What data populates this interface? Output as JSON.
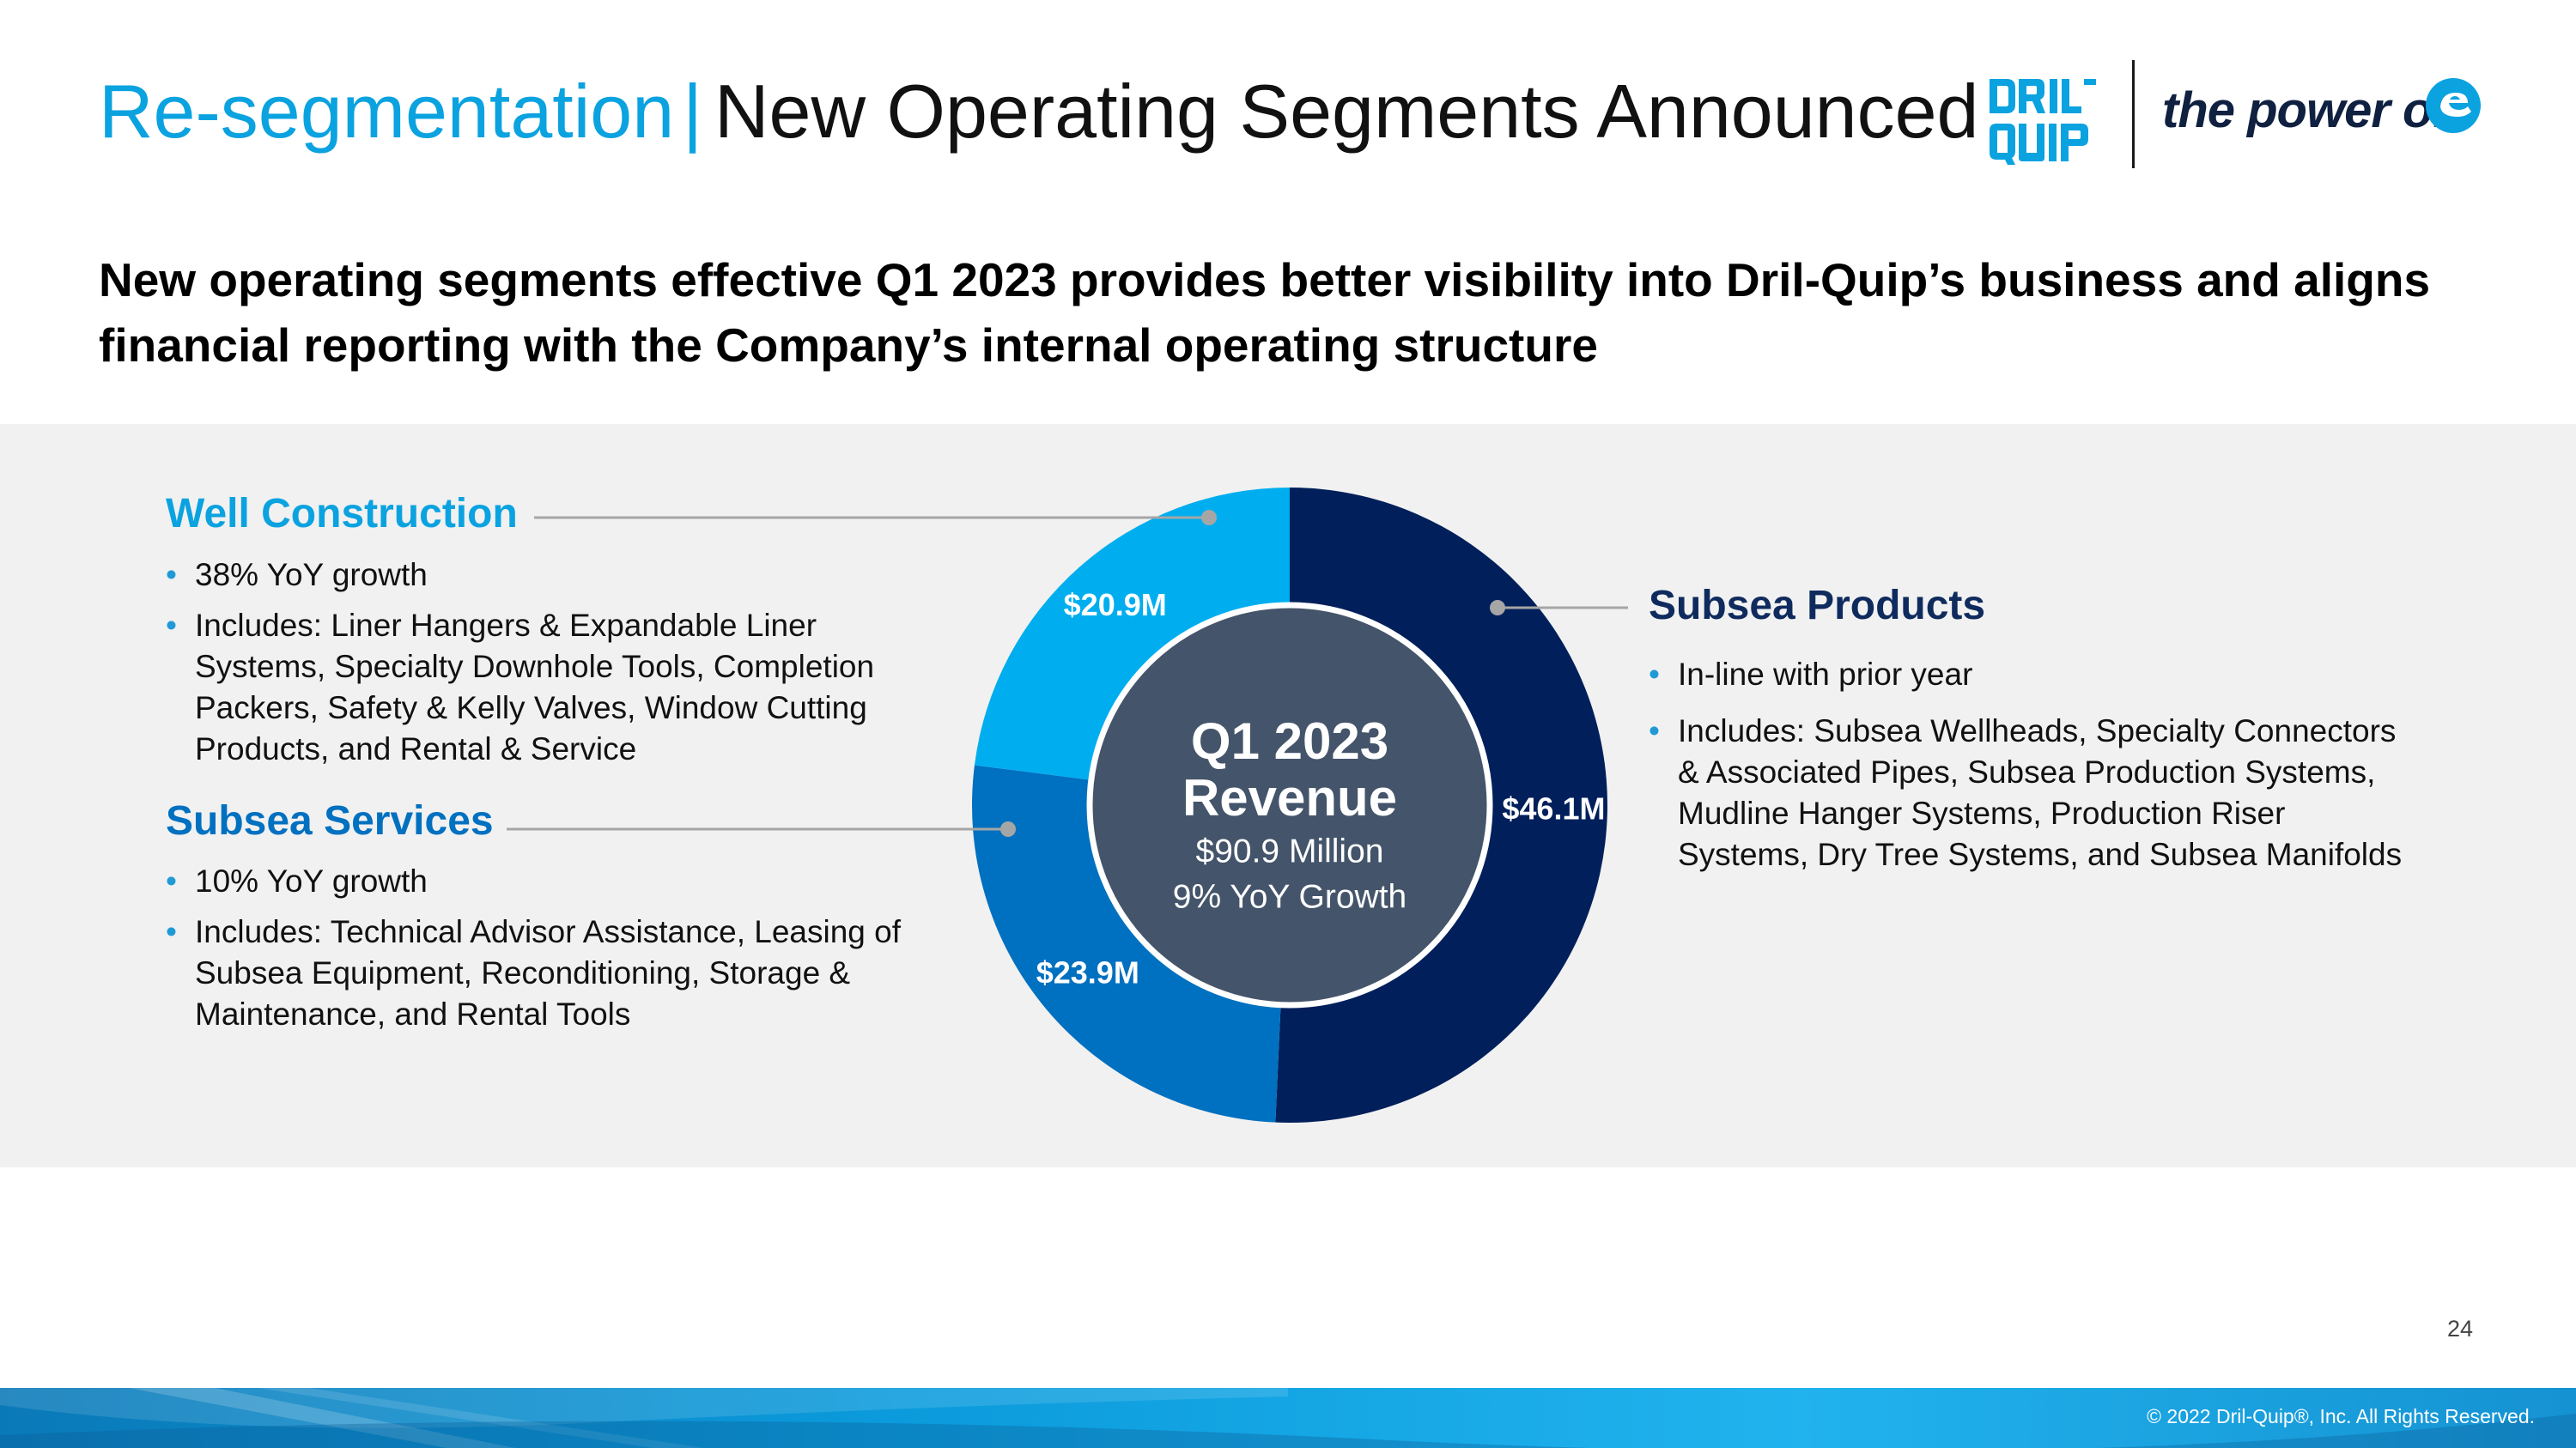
{
  "header": {
    "title_part1": "Re-segmentation",
    "title_separator": "|",
    "title_part2": "New Operating Segments Announced",
    "logo_brand": "DRIL-QUIP",
    "logo_tagline": "the power of"
  },
  "subtitle": "New operating segments effective Q1 2023 provides better visibility into Dril-Quip’s business and aligns financial reporting with the Company’s internal operating structure",
  "segments": {
    "well_construction": {
      "title": "Well Construction",
      "bullets": [
        "38% YoY growth",
        "Includes: Liner Hangers & Expandable Liner Systems, Specialty Downhole Tools, Completion Packers, Safety & Kelly Valves, Window Cutting Products, and Rental & Service"
      ]
    },
    "subsea_services": {
      "title": "Subsea Services",
      "bullets": [
        "10% YoY growth",
        "Includes: Technical Advisor Assistance, Leasing of Subsea Equipment, Reconditioning, Storage & Maintenance, and Rental Tools"
      ]
    },
    "subsea_products": {
      "title": "Subsea Products",
      "bullets": [
        "In-line with prior year",
        "Includes: Subsea Wellheads, Specialty Connectors & Associated Pipes, Subsea Production Systems, Mudline Hanger Systems, Production Riser Systems, Dry Tree Systems, and Subsea Manifolds"
      ]
    }
  },
  "chart_data": {
    "type": "pie",
    "categories": [
      "Subsea Products",
      "Subsea Services",
      "Well Construction"
    ],
    "values": [
      46.1,
      23.9,
      20.9
    ],
    "labels": [
      "$46.1M",
      "$23.9M",
      "$20.9M"
    ],
    "colors": [
      "#001f5b",
      "#0070c0",
      "#00aeef"
    ],
    "center": {
      "line1": "Q1 2023",
      "line2": "Revenue",
      "line3": "$90.9 Million",
      "line4": "9% YoY Growth"
    }
  },
  "colors": {
    "accent": "#0ba2e0",
    "well_construction": "#00aeef",
    "subsea_services": "#0070c0",
    "subsea_products": "#0f2b5e",
    "center": "#44546a",
    "band": "#f1f1f1"
  },
  "page_number": "24",
  "copyright": "© 2022 Dril-Quip®, Inc. All Rights Reserved."
}
